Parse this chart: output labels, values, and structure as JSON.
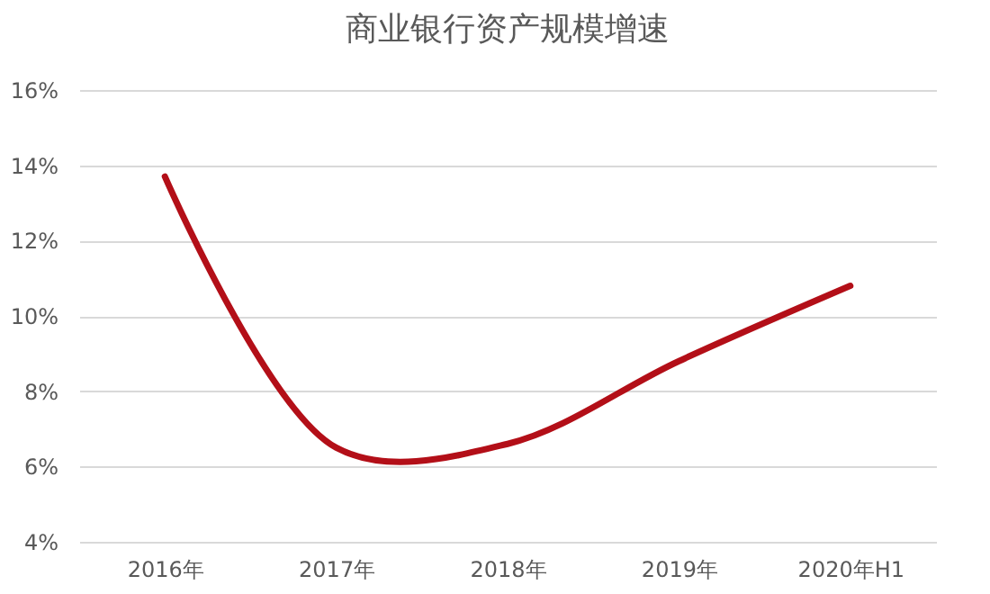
{
  "chart_data": {
    "type": "line",
    "title": "商业银行资产规模增速",
    "categories": [
      "2016年",
      "2017年",
      "2018年",
      "2019年",
      "2020年H1"
    ],
    "series": [
      {
        "color": "#b30f18",
        "values": [
          13.7,
          6.5,
          6.6,
          8.8,
          10.8
        ]
      }
    ],
    "ylim": [
      4,
      16
    ],
    "yticks": [
      {
        "value": 4,
        "label": "4%"
      },
      {
        "value": 6,
        "label": "6%"
      },
      {
        "value": 8,
        "label": "8%"
      },
      {
        "value": 10,
        "label": "10%"
      },
      {
        "value": 12,
        "label": "12%"
      },
      {
        "value": 14,
        "label": "14%"
      },
      {
        "value": 16,
        "label": "16%"
      }
    ],
    "grid": "y",
    "marker": "none",
    "line_style": "solid"
  }
}
